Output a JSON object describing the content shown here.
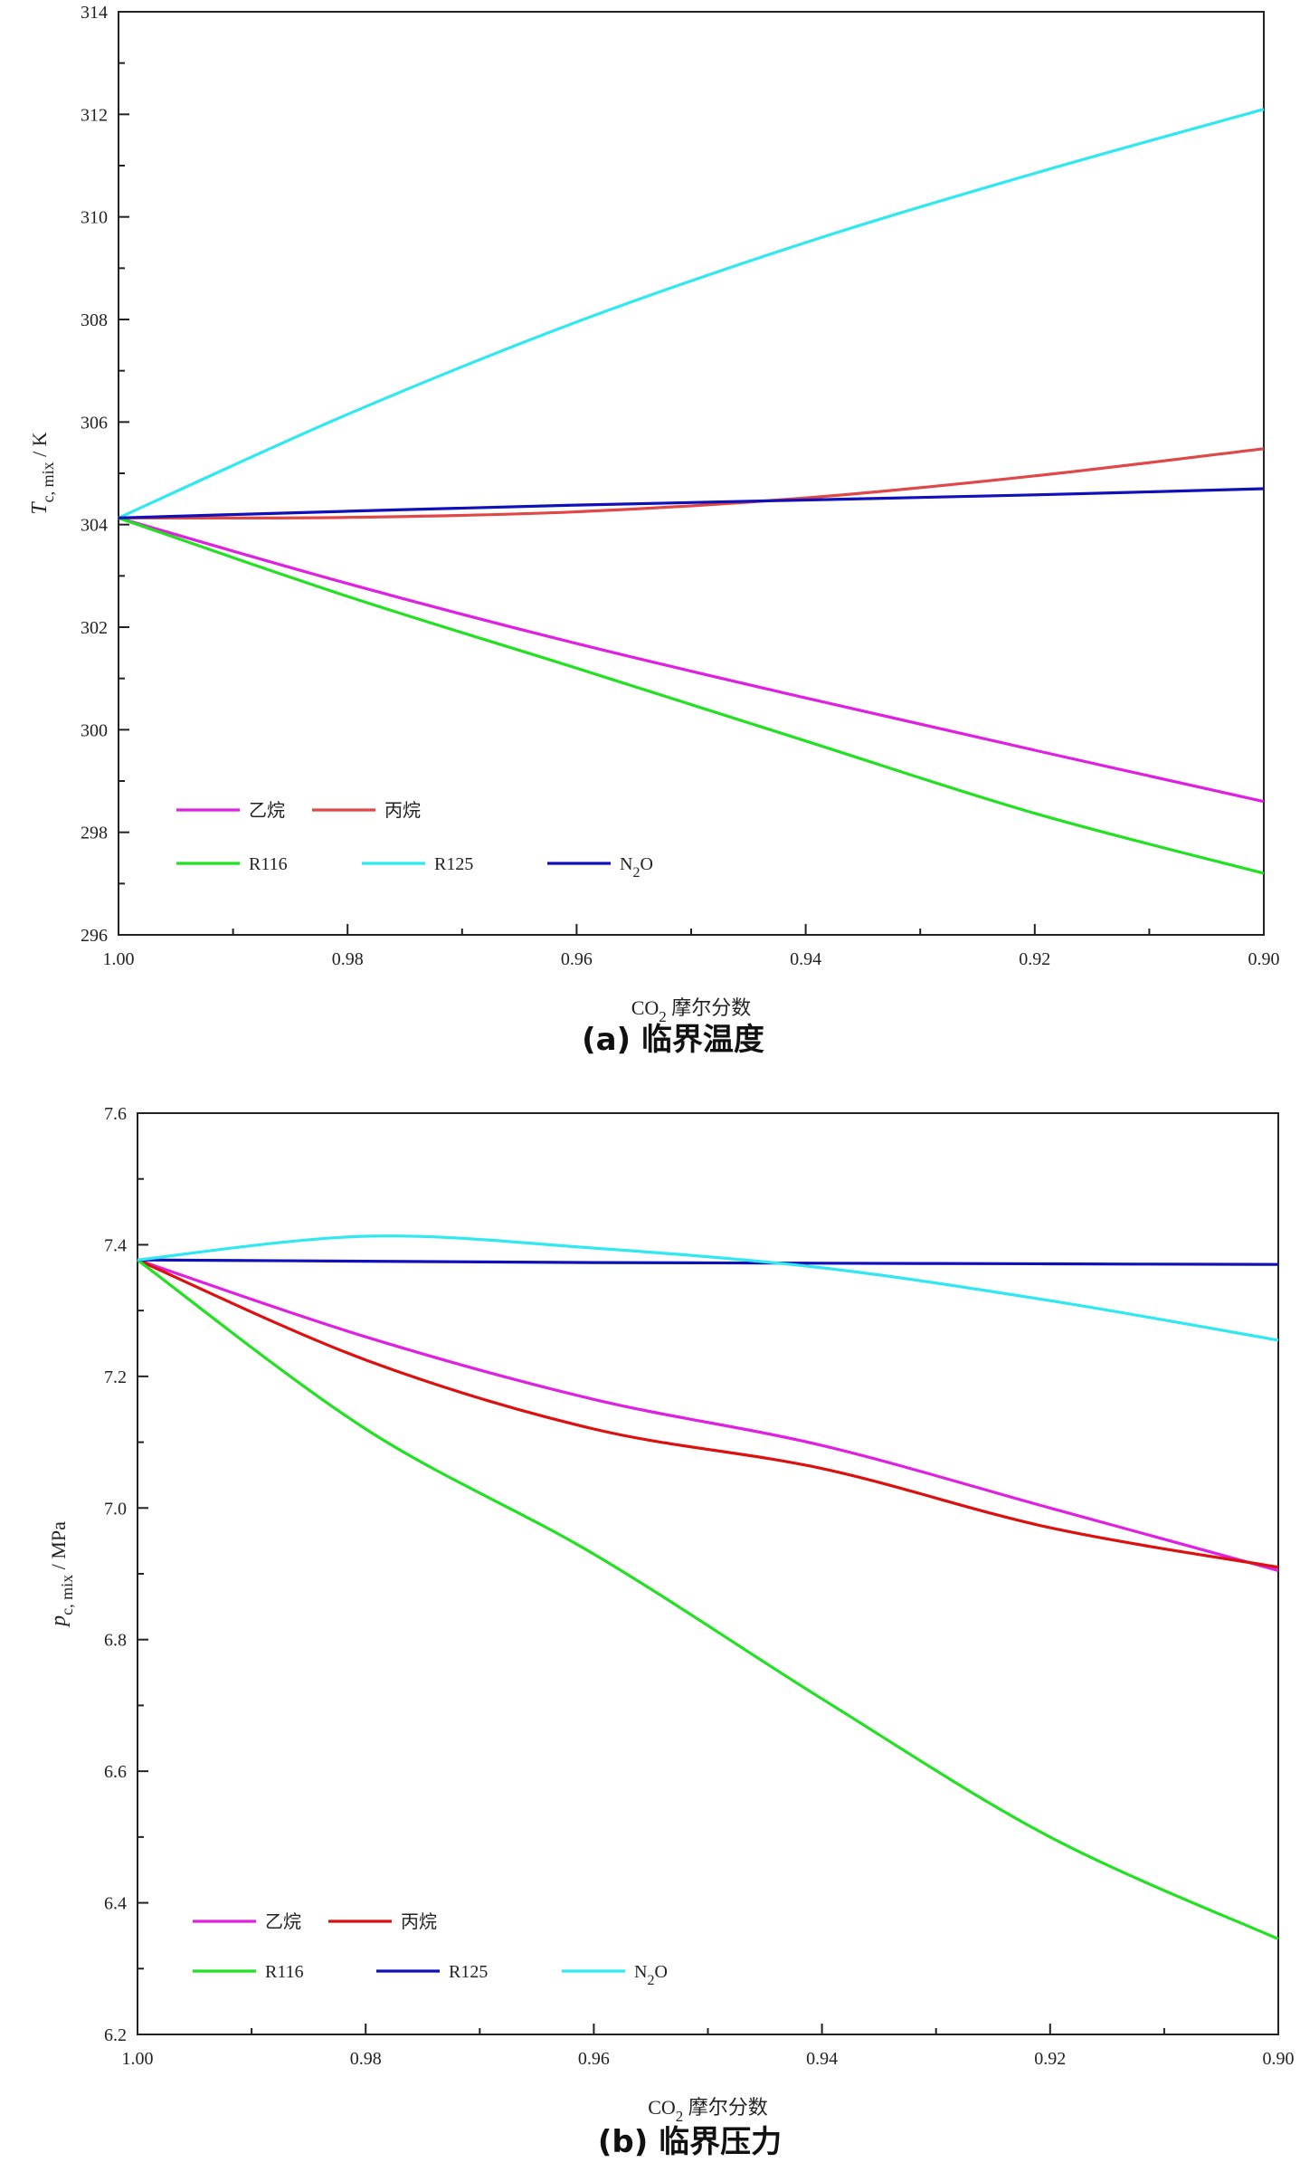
{
  "chart_data": [
    {
      "type": "line",
      "caption": "(a) 临界温度",
      "xlabel": {
        "main": "CO",
        "sub": "2",
        "rest": " 摩尔分数"
      },
      "ylabel": {
        "main": "T",
        "sub": "c, mix",
        "rest": " / K"
      },
      "xlim": [
        1.0,
        0.9
      ],
      "ylim": [
        296,
        314
      ],
      "x_ticks": [
        1.0,
        0.98,
        0.96,
        0.94,
        0.92,
        0.9
      ],
      "x_tick_labels": [
        "1.00",
        "0.98",
        "0.96",
        "0.94",
        "0.92",
        "0.90"
      ],
      "y_ticks": [
        296,
        298,
        300,
        302,
        304,
        306,
        308,
        310,
        312,
        314
      ],
      "y_tick_labels": [
        "296",
        "298",
        "300",
        "302",
        "304",
        "306",
        "308",
        "310",
        "312",
        "314"
      ],
      "x": [
        1.0,
        0.98,
        0.96,
        0.94,
        0.92,
        0.9
      ],
      "legend_position": "bottom-left",
      "series": [
        {
          "name": "乙烷",
          "color": "#e020e0",
          "values": [
            304.13,
            302.85,
            301.68,
            300.62,
            299.6,
            298.6
          ],
          "legend_row": 0
        },
        {
          "name": "丙烷",
          "color": "#e04848",
          "values": [
            304.13,
            304.14,
            304.25,
            304.52,
            304.95,
            305.48
          ],
          "legend_row": 0
        },
        {
          "name": "R116",
          "color": "#22e022",
          "values": [
            304.13,
            302.6,
            301.2,
            299.78,
            298.37,
            297.2
          ],
          "legend_row": 1
        },
        {
          "name": "R125",
          "color": "#30e8f0",
          "values": [
            304.13,
            306.15,
            307.95,
            309.5,
            310.85,
            312.1
          ],
          "legend_row": 1
        },
        {
          "name": "N2O",
          "name_parts": [
            "N",
            "2",
            "O"
          ],
          "color": "#1010b8",
          "values": [
            304.13,
            304.26,
            304.38,
            304.48,
            304.58,
            304.7
          ],
          "legend_row": 1
        }
      ]
    },
    {
      "type": "line",
      "caption": "(b) 临界压力",
      "xlabel": {
        "main": "CO",
        "sub": "2",
        "rest": " 摩尔分数"
      },
      "ylabel": {
        "main": "p",
        "sub": "c, mix",
        "rest": " / MPa"
      },
      "xlim": [
        1.0,
        0.9
      ],
      "ylim": [
        6.2,
        7.6
      ],
      "x_ticks": [
        1.0,
        0.98,
        0.96,
        0.94,
        0.92,
        0.9
      ],
      "x_tick_labels": [
        "1.00",
        "0.98",
        "0.96",
        "0.94",
        "0.92",
        "0.90"
      ],
      "y_ticks": [
        6.2,
        6.4,
        6.6,
        6.8,
        7.0,
        7.2,
        7.4,
        7.6
      ],
      "y_tick_labels": [
        "6.2",
        "6.4",
        "6.6",
        "6.8",
        "7.0",
        "7.2",
        "7.4",
        "7.6"
      ],
      "x": [
        1.0,
        0.98,
        0.96,
        0.94,
        0.92,
        0.9
      ],
      "legend_position": "bottom-left",
      "series": [
        {
          "name": "乙烷",
          "color": "#e020e0",
          "values": [
            7.377,
            7.26,
            7.165,
            7.095,
            7.0,
            6.905
          ],
          "legend_row": 0
        },
        {
          "name": "丙烷",
          "color": "#dd1010",
          "values": [
            7.377,
            7.225,
            7.12,
            7.06,
            6.97,
            6.91
          ],
          "legend_row": 0
        },
        {
          "name": "R116",
          "color": "#22e022",
          "values": [
            7.377,
            7.12,
            6.93,
            6.71,
            6.5,
            6.345
          ],
          "legend_row": 1
        },
        {
          "name": "R125",
          "color": "#1010b8",
          "values": [
            7.377,
            7.375,
            7.373,
            7.372,
            7.371,
            7.37
          ],
          "legend_row": 1
        },
        {
          "name": "N2O",
          "name_parts": [
            "N",
            "2",
            "O"
          ],
          "color": "#30e8f0",
          "values": [
            7.377,
            7.413,
            7.395,
            7.365,
            7.315,
            7.255
          ],
          "legend_row": 1
        }
      ]
    }
  ]
}
